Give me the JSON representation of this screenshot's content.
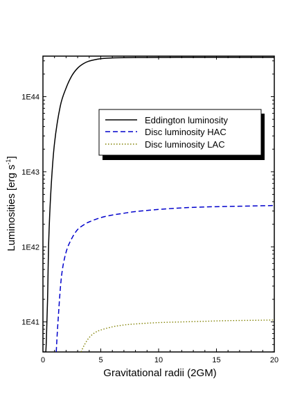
{
  "chart_data": {
    "type": "line",
    "title": "",
    "xlabel": "Gravitational radii (2GM)",
    "ylabel_main": "Luminosities [erg s",
    "ylabel_sup": "-1",
    "ylabel_close": "]",
    "xlim": [
      0,
      20
    ],
    "ylim_log10": [
      40.6,
      44.54
    ],
    "y_scale": "log",
    "x_ticks": [
      0,
      5,
      10,
      15,
      20
    ],
    "x_tick_labels": [
      "0",
      "5",
      "10",
      "15",
      "20"
    ],
    "y_ticks_log10": [
      41,
      42,
      43,
      44
    ],
    "y_tick_labels": [
      "1E41",
      "1E42",
      "1E43",
      "1E44"
    ],
    "grid": false,
    "legend_position": "upper-right",
    "series": [
      {
        "name": "Eddington luminosity",
        "color": "#000000",
        "dash": "solid",
        "x": [
          0.25,
          0.3,
          0.4,
          0.5,
          0.7,
          1.0,
          1.5,
          2.0,
          2.5,
          3.0,
          3.5,
          4.0,
          5.0,
          6.0,
          8.0,
          10.0,
          12.0,
          15.0,
          20.0
        ],
        "y": [
          4e+40,
          6e+40,
          2e+41,
          1.2e+42,
          6e+42,
          2.4e+43,
          7.5e+43,
          1.3e+44,
          1.9e+44,
          2.4e+44,
          2.75e+44,
          2.98e+44,
          3.2e+44,
          3.28e+44,
          3.32e+44,
          3.33e+44,
          3.34e+44,
          3.34e+44,
          3.34e+44
        ]
      },
      {
        "name": "Disc luminosity HAC",
        "color": "#0000cc",
        "dash": "dashed",
        "x": [
          1.15,
          1.3,
          1.6,
          2.0,
          2.5,
          3.0,
          3.5,
          4.0,
          5.0,
          6.0,
          7.0,
          8.0,
          10.0,
          12.0,
          14.0,
          16.0,
          18.0,
          20.0
        ],
        "y": [
          4e+40,
          1e+41,
          4e+41,
          8.5e+41,
          1.3e+42,
          1.7e+42,
          1.95e+42,
          2.15e+42,
          2.45e+42,
          2.65e+42,
          2.8e+42,
          2.95e+42,
          3.15e+42,
          3.3e+42,
          3.4e+42,
          3.45e+42,
          3.5e+42,
          3.55e+42
        ]
      },
      {
        "name": "Disc luminosity LAC",
        "color": "#808000",
        "dash": "dotted",
        "x": [
          3.3,
          3.6,
          4.0,
          4.5,
          5.0,
          6.0,
          7.0,
          8.0,
          10.0,
          12.0,
          14.0,
          16.0,
          18.0,
          20.0
        ],
        "y": [
          4e+40,
          5e+40,
          6.2e+40,
          7.2e+40,
          7.8e+40,
          8.6e+40,
          9.1e+40,
          9.4e+40,
          9.8e+40,
          1e+41,
          1.02e+41,
          1.04e+41,
          1.05e+41,
          1.06e+41
        ]
      }
    ]
  }
}
